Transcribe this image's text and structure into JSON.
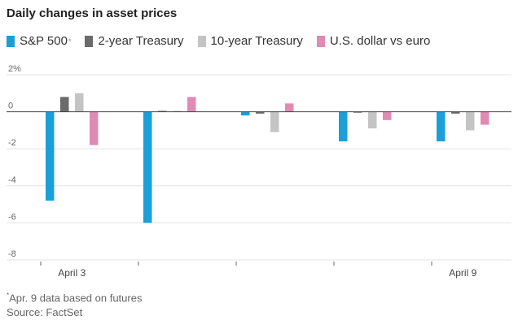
{
  "chart_data": {
    "type": "bar",
    "title": "Daily changes in asset prices",
    "unit_suffix": "%",
    "ylim": [
      -8,
      2
    ],
    "yticks": [
      2,
      0,
      -2,
      -4,
      -6,
      -8
    ],
    "ytick_labels": [
      "2%",
      "0",
      "-2",
      "-4",
      "-6",
      "-8"
    ],
    "groups": 5,
    "x_labels": [
      {
        "group": 0,
        "label": "April 3"
      },
      {
        "group": 4,
        "label": "April 9"
      }
    ],
    "series": [
      {
        "name": "S&P 500",
        "marker": "*",
        "color": "#1a9fd9",
        "values": [
          -4.8,
          -6.0,
          -0.2,
          -1.6,
          -1.6
        ]
      },
      {
        "name": "2-year Treasury",
        "color": "#6b6b6b",
        "values": [
          0.8,
          0.05,
          -0.1,
          -0.05,
          -0.1
        ]
      },
      {
        "name": "10-year Treasury",
        "color": "#c4c4c4",
        "values": [
          1.0,
          0.05,
          -1.1,
          -0.9,
          -1.0
        ]
      },
      {
        "name": "U.S. dollar vs euro",
        "color": "#e08bb4",
        "values": [
          -1.8,
          0.8,
          0.45,
          -0.45,
          -0.7
        ]
      }
    ]
  },
  "footnote": {
    "marker": "*",
    "note": "Apr. 9 data based on futures",
    "source": "Source: FactSet"
  }
}
